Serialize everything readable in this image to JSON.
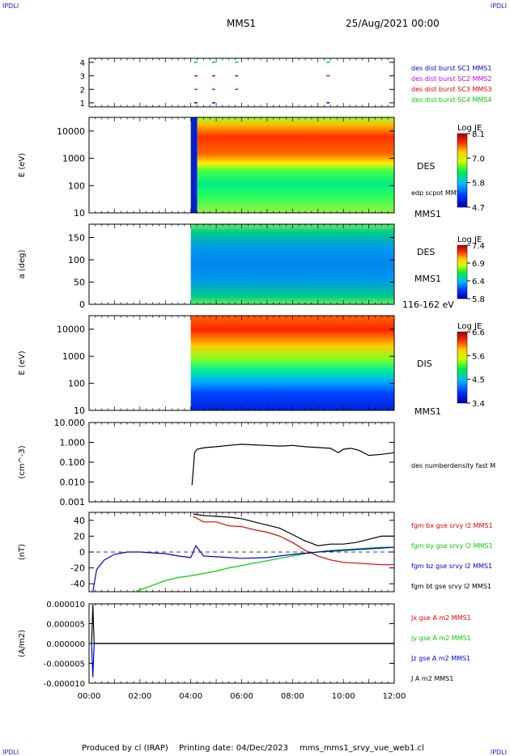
{
  "header": {
    "corner_label": "IPDLI",
    "spacecraft": "MMS1",
    "date": "25/Aug/2021 00:00"
  },
  "footer": {
    "produced": "Produced by cl (IRAP)",
    "printing_date": "Printing date: 04/Dec/2023",
    "filename": "mms_mms1_srvy_vue_web1.cl"
  },
  "time_axis": {
    "tick_labels": [
      "00:00",
      "02:00",
      "04:00",
      "06:00",
      "08:00",
      "10:00",
      "12:00"
    ]
  },
  "colors": {
    "blue": "#0000cc",
    "magenta": "#cc00cc",
    "red": "#dd0000",
    "green": "#00cc00",
    "black": "#000000"
  },
  "panels": {
    "burst": {
      "y_ticks": [
        "4",
        "3",
        "2",
        "1"
      ],
      "legend": [
        {
          "label": "des dist burst SC1 MMS1",
          "color": "#0000cc"
        },
        {
          "label": "des dist burst SC2 MMS2",
          "color": "#cc00cc"
        },
        {
          "label": "des dist burst SC3 MMS3",
          "color": "#dd0000"
        },
        {
          "label": "des dist burst SC4 MMS4",
          "color": "#00cc00"
        }
      ]
    },
    "des_energy": {
      "ylabel": "E (eV)",
      "y_ticks": [
        "10000",
        "1000",
        "100",
        "10"
      ],
      "right_label": "DES",
      "overlay_label": "edp scpot MMS1",
      "sc_label": "MMS1",
      "colorbar_title": "Log JE",
      "colorbar_ticks": [
        "8.1",
        "7.0",
        "5.8",
        "4.7"
      ]
    },
    "des_pitch": {
      "ylabel": "a (deg)",
      "y_ticks": [
        "150",
        "100",
        "50",
        "0"
      ],
      "right_label": "DES",
      "sc_label": "MMS1",
      "energy_range": "116-162 eV",
      "colorbar_title": "Log JE",
      "colorbar_ticks": [
        "7.4",
        "6.9",
        "6.4",
        "5.8"
      ]
    },
    "dis_energy": {
      "ylabel": "E (eV)",
      "y_ticks": [
        "10000",
        "1000",
        "100",
        "10"
      ],
      "right_label": "DIS",
      "sc_label": "MMS1",
      "colorbar_title": "Log JE",
      "colorbar_ticks": [
        "6.6",
        "5.6",
        "4.5",
        "3.4"
      ]
    },
    "density": {
      "ylabel": "(cm^-3)",
      "y_ticks": [
        "10.000",
        "1.000",
        "0.100",
        "0.010",
        "0.001"
      ],
      "legend": [
        {
          "label": "des numberdensity fast M",
          "color": "#000000"
        }
      ]
    },
    "bfield": {
      "ylabel": "(nT)",
      "y_ticks": [
        "40",
        "20",
        "0",
        "-20",
        "-40"
      ],
      "legend": [
        {
          "label": "fgm bx gse srvy l2 MMS1",
          "color": "#dd0000"
        },
        {
          "label": "fgm by gse srvy l2 MMS1",
          "color": "#00cc00"
        },
        {
          "label": "fgm bz gse srvy l2 MMS1",
          "color": "#0000cc"
        },
        {
          "label": "fgm bt gse srvy l2 MMS1",
          "color": "#000000"
        }
      ]
    },
    "current": {
      "ylabel": "(A/m2)",
      "y_ticks": [
        "0.000010",
        "0.000005",
        "0.000000",
        "-0.000005",
        "-0.000010"
      ],
      "legend": [
        {
          "label": "Jx gse A m2 MMS1",
          "color": "#dd0000"
        },
        {
          "label": "Jy gse A m2 MMS1",
          "color": "#00cc00"
        },
        {
          "label": "Jz gse A m2 MMS1",
          "color": "#0000cc"
        },
        {
          "label": "J A m2 MMS1",
          "color": "#000000"
        }
      ]
    }
  },
  "chart_data": {
    "type": "line",
    "x_unit": "hours since 25/Aug/2021 00:00",
    "xlim": [
      0,
      12
    ],
    "burst_marks": [
      {
        "sc": 4,
        "times": [
          4.2,
          4.9,
          5.8,
          9.4
        ]
      },
      {
        "sc": 3,
        "times": [
          4.2,
          4.9,
          5.8,
          9.4
        ]
      },
      {
        "sc": 2,
        "times": [
          4.2,
          4.9,
          5.8
        ]
      },
      {
        "sc": 1,
        "times": [
          4.2,
          4.9,
          9.4
        ]
      }
    ],
    "density": {
      "ylim_log": [
        0.001,
        10
      ],
      "x": [
        4.05,
        4.15,
        4.25,
        4.4,
        4.6,
        5.0,
        5.5,
        6.0,
        6.5,
        7.0,
        7.5,
        8.0,
        8.5,
        9.0,
        9.5,
        9.8,
        10.0,
        10.3,
        10.6,
        11.0,
        11.5,
        12.0
      ],
      "y": [
        0.007,
        0.3,
        0.45,
        0.5,
        0.55,
        0.6,
        0.7,
        0.8,
        0.75,
        0.7,
        0.65,
        0.7,
        0.6,
        0.55,
        0.5,
        0.3,
        0.45,
        0.5,
        0.4,
        0.22,
        0.25,
        0.3
      ]
    },
    "bfield": {
      "ylim": [
        -50,
        50
      ],
      "series": [
        {
          "name": "bx",
          "x": [
            4.1,
            4.5,
            5.0,
            5.5,
            6.0,
            6.5,
            7.0,
            7.5,
            8.0,
            8.5,
            9.0,
            9.5,
            10.0,
            10.5,
            11.0,
            11.5,
            12.0
          ],
          "y": [
            45,
            38,
            38,
            33,
            32,
            28,
            25,
            20,
            12,
            2,
            -5,
            -10,
            -13,
            -14,
            -15,
            -16,
            -16
          ]
        },
        {
          "name": "by",
          "x": [
            1.8,
            2.5,
            3.0,
            3.5,
            4.0,
            4.5,
            5.0,
            5.5,
            6.0,
            6.5,
            7.0,
            7.5,
            8.0,
            8.5,
            9.0,
            9.5,
            10.0,
            10.5,
            11.0,
            11.5,
            12.0
          ],
          "y": [
            -50,
            -42,
            -36,
            -32,
            -30,
            -27,
            -24,
            -20,
            -17,
            -14,
            -11,
            -8,
            -5,
            -2,
            0,
            2,
            3,
            4,
            5,
            6,
            6
          ]
        },
        {
          "name": "bz",
          "x": [
            0.15,
            0.3,
            0.6,
            1.0,
            1.5,
            2.0,
            2.5,
            3.0,
            3.5,
            4.0,
            4.2,
            4.5,
            5.0,
            6.0,
            7.0,
            8.0,
            9.0,
            10.0,
            11.0,
            12.0
          ],
          "y": [
            -50,
            -22,
            -10,
            -3,
            0,
            0,
            -1,
            -2,
            -5,
            -7,
            8,
            -5,
            -6,
            -8,
            -7,
            -3,
            0,
            2,
            4,
            6
          ]
        },
        {
          "name": "bt",
          "x": [
            4.1,
            4.5,
            5.0,
            5.5,
            6.0,
            6.5,
            7.0,
            7.5,
            8.0,
            8.5,
            9.0,
            9.5,
            10.0,
            10.5,
            11.0,
            11.5,
            12.0
          ],
          "y": [
            48,
            46,
            45,
            44,
            42,
            38,
            34,
            30,
            22,
            14,
            8,
            10,
            10,
            12,
            16,
            20,
            20
          ]
        }
      ]
    },
    "current": {
      "ylim": [
        -1e-05,
        1e-05
      ],
      "series": [
        {
          "name": "jz",
          "x": [
            0.1,
            0.15,
            0.2,
            0.3,
            12.0
          ],
          "y": [
            0.0,
            -8.5e-06,
            0.0,
            0.0,
            0.0
          ]
        },
        {
          "name": "j",
          "x": [
            0.1,
            0.15,
            0.2,
            0.3,
            12.0
          ],
          "y": [
            0.0,
            9.8e-06,
            0.0,
            0.0,
            0.0
          ]
        }
      ]
    }
  }
}
